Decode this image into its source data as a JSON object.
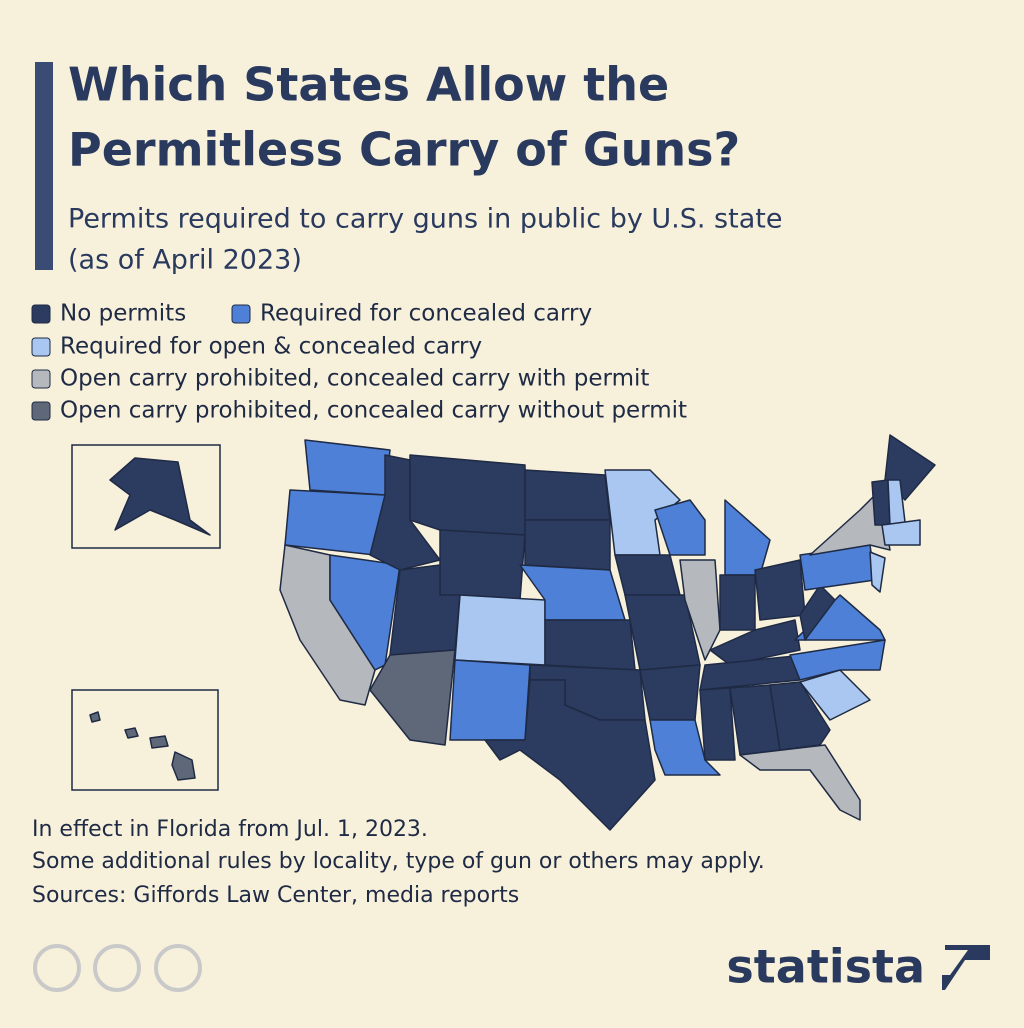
{
  "header": {
    "title_lines": [
      "Which States Allow the",
      "Permitless Carry of Guns?"
    ],
    "subtitle_lines": [
      "Permits required to carry guns in public by U.S. state",
      "(as of April 2023)"
    ]
  },
  "legend": [
    {
      "label": "No permits",
      "color": "#2c3b60"
    },
    {
      "label": "Required for concealed carry",
      "color": "#4d80d6"
    },
    {
      "label": "Required for open & concealed carry",
      "color": "#a9c7f0"
    },
    {
      "label": "Open carry prohibited, concealed carry with permit",
      "color": "#b5b9bd"
    },
    {
      "label": "Open carry prohibited, concealed carry without permit",
      "color": "#5f6878"
    }
  ],
  "notes": [
    "In effect in Florida from Jul. 1, 2023.",
    "Some additional rules by locality, type of gun or others may apply.",
    "Sources: Giffords Law Center, media reports"
  ],
  "brand": "statista"
}
